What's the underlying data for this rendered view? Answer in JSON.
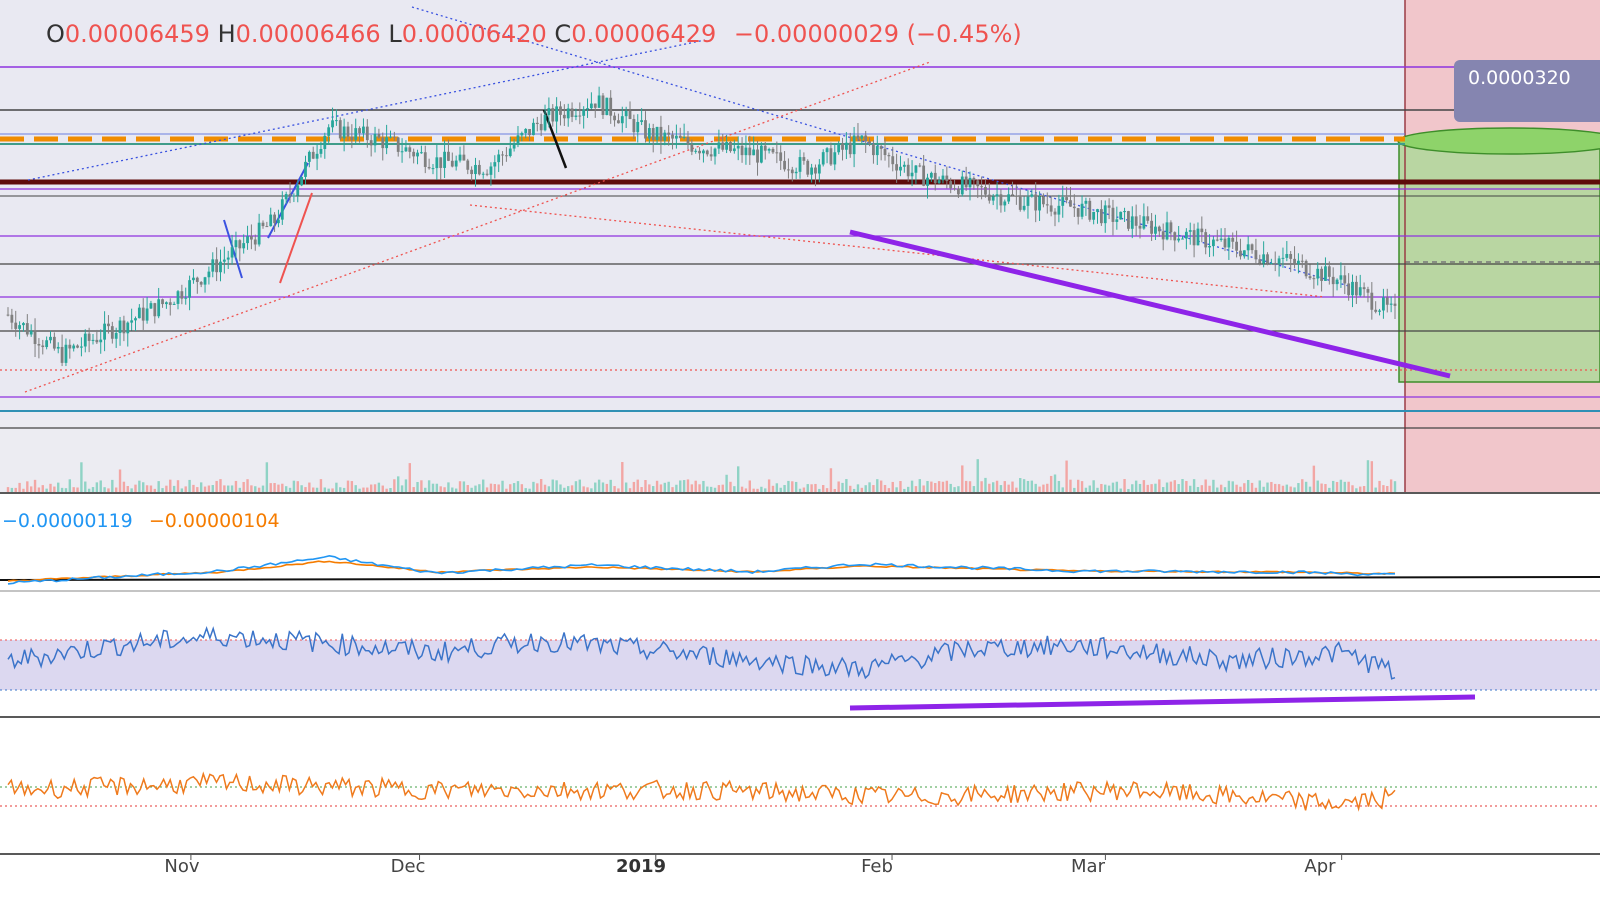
{
  "header": {
    "open_key": "O",
    "open_val": "0.00006459",
    "high_key": "H",
    "high_val": "0.00006466",
    "low_key": "L",
    "low_val": "0.00006420",
    "close_key": "C",
    "close_val": "0.00006429",
    "change": "−0.00000029 (−0.45%)"
  },
  "price_badge": "0.0000320",
  "macd_legend": {
    "macd": "−0.00000119",
    "signal": "−0.00000104"
  },
  "colors": {
    "candle_up": "#26a69a",
    "candle_down": "#7f7f7f",
    "rsi": "#3b74c9",
    "macd": "#2196f3",
    "signal": "#f57c00",
    "osc": "#ef7a1d",
    "trend_purple": "#8e24e8",
    "down_red": "#ef5350",
    "band": "#d8d4ee",
    "target_green": "#a9cf8f",
    "stop_red": "#f1c6cb"
  },
  "chart_data": {
    "type": "line",
    "title": "",
    "x_tick_labels": [
      "Nov",
      "Dec",
      "2019",
      "Feb",
      "Mar",
      "Apr"
    ],
    "x_tick_dates": [
      "2018-11-01",
      "2018-12-01",
      "2019-01-01",
      "2019-02-01",
      "2019-03-01",
      "2019-04-01"
    ],
    "ohlc_last": {
      "open": 6.459e-05,
      "high": 6.466e-05,
      "low": 6.42e-05,
      "close": 6.429e-05,
      "change": -2.9e-07,
      "change_pct": -0.45
    },
    "price_label": "0.0000320",
    "panes": [
      "price",
      "macd",
      "rsi",
      "oscillator"
    ],
    "series": [
      {
        "pane": "price",
        "x": [
          "2018-10-08",
          "2018-10-15",
          "2018-10-22",
          "2018-10-29",
          "2018-11-05",
          "2018-11-12",
          "2018-11-19",
          "2018-11-26",
          "2018-12-03",
          "2018-12-10",
          "2018-12-17",
          "2018-12-24",
          "2018-12-31",
          "2019-01-07",
          "2019-01-14",
          "2019-01-21",
          "2019-01-28",
          "2019-02-04",
          "2019-02-11",
          "2019-02-18",
          "2019-02-25",
          "2019-03-04",
          "2019-03-11",
          "2019-03-18",
          "2019-03-25",
          "2019-04-01",
          "2019-04-08"
        ],
        "values": [
          0.72,
          0.66,
          0.7,
          0.74,
          0.8,
          0.86,
          1.0,
          0.98,
          0.95,
          0.94,
          1.01,
          1.04,
          0.99,
          0.97,
          0.96,
          0.94,
          0.98,
          0.93,
          0.91,
          0.89,
          0.88,
          0.86,
          0.84,
          0.82,
          0.8,
          0.77,
          0.72
        ]
      },
      {
        "name": "−0.00000119",
        "pane": "macd",
        "x": [
          "2018-10-08",
          "2018-11-05",
          "2018-11-19",
          "2018-12-03",
          "2018-12-24",
          "2019-01-14",
          "2019-01-28",
          "2019-02-25",
          "2019-03-25",
          "2019-04-08"
        ],
        "values": [
          -0.5,
          0.1,
          0.8,
          0.0,
          0.4,
          0.05,
          0.45,
          0.1,
          0.05,
          -0.1
        ]
      },
      {
        "name": "−0.00000104",
        "pane": "macd",
        "x": [
          "2018-10-08",
          "2018-11-05",
          "2018-11-19",
          "2018-12-03",
          "2018-12-24",
          "2019-01-14",
          "2019-01-28",
          "2019-02-25",
          "2019-03-25",
          "2019-04-08"
        ],
        "values": [
          -0.4,
          0.05,
          0.6,
          0.05,
          0.3,
          0.05,
          0.35,
          0.1,
          0.05,
          -0.05
        ]
      },
      {
        "pane": "rsi",
        "x": [
          "2018-10-08",
          "2018-10-22",
          "2018-11-05",
          "2018-11-19",
          "2018-12-03",
          "2018-12-17",
          "2019-01-07",
          "2019-01-28",
          "2019-02-11",
          "2019-02-25",
          "2019-03-18",
          "2019-04-01",
          "2019-04-08"
        ],
        "values": [
          45,
          58,
          66,
          60,
          52,
          62,
          50,
          38,
          55,
          58,
          45,
          52,
          36
        ]
      },
      {
        "pane": "oscillator",
        "x": [
          "2018-10-08",
          "2018-11-05",
          "2018-12-03",
          "2019-01-07",
          "2019-02-04",
          "2019-03-04",
          "2019-04-01",
          "2019-04-08"
        ],
        "values": [
          0.5,
          0.55,
          0.5,
          0.5,
          0.45,
          0.5,
          0.4,
          0.45
        ]
      }
    ],
    "grid": false,
    "legend": "top-left"
  }
}
